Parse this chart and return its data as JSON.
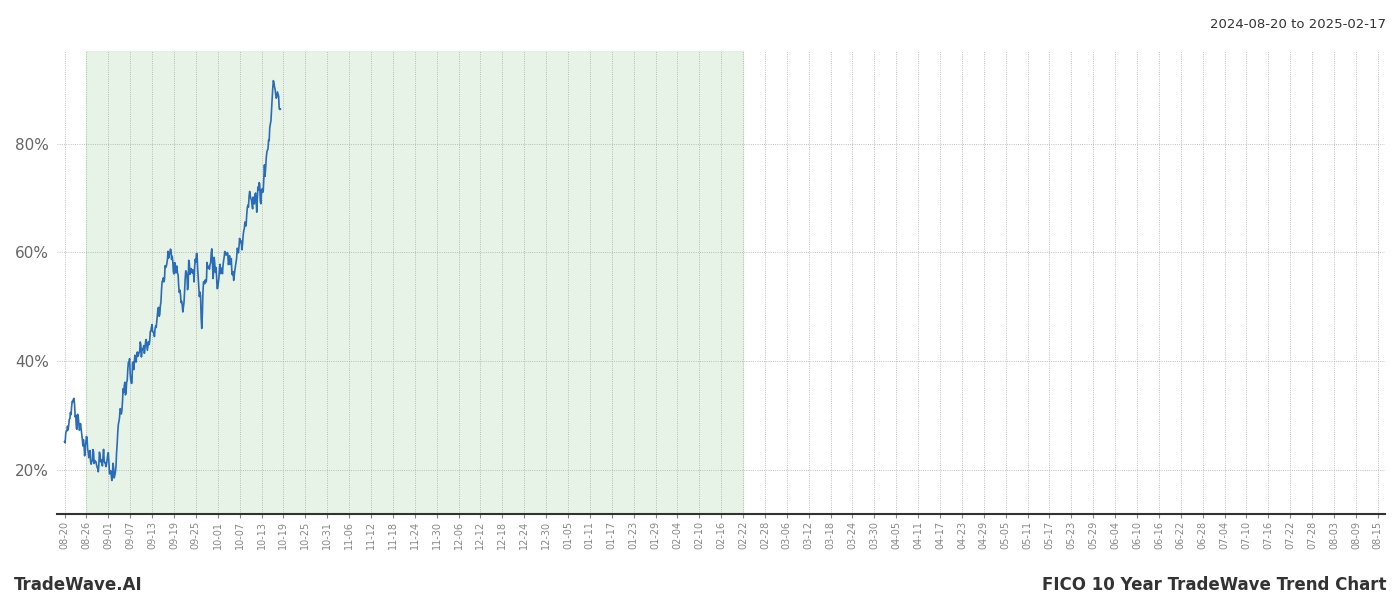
{
  "title_date_range": "2024-08-20 to 2025-02-17",
  "footer_left": "TradeWave.AI",
  "footer_right": "FICO 10 Year TradeWave Trend Chart",
  "line_color": "#2b6cb8",
  "line_width": 1.2,
  "shaded_color": "#daeeda",
  "shaded_alpha": 0.65,
  "grid_color": "#aaaaaa",
  "grid_linestyle": ":",
  "background_color": "#ffffff",
  "ylim": [
    12,
    97
  ],
  "yticks": [
    20,
    40,
    60,
    80
  ],
  "shade_start_label": "08-26",
  "shade_end_label": "02-22",
  "xtick_labels": [
    "08-20",
    "08-26",
    "09-01",
    "09-07",
    "09-13",
    "09-19",
    "09-25",
    "10-01",
    "10-07",
    "10-13",
    "10-19",
    "10-25",
    "10-31",
    "11-06",
    "11-12",
    "11-18",
    "11-24",
    "11-30",
    "12-06",
    "12-12",
    "12-18",
    "12-24",
    "12-30",
    "01-05",
    "01-11",
    "01-17",
    "01-23",
    "01-29",
    "02-04",
    "02-10",
    "02-16",
    "02-22",
    "02-28",
    "03-06",
    "03-12",
    "03-18",
    "03-24",
    "03-30",
    "04-05",
    "04-11",
    "04-17",
    "04-23",
    "04-29",
    "05-05",
    "05-11",
    "05-17",
    "05-23",
    "05-29",
    "06-04",
    "06-10",
    "06-16",
    "06-22",
    "06-28",
    "07-04",
    "07-10",
    "07-16",
    "07-22",
    "07-28",
    "08-03",
    "08-09",
    "08-15"
  ]
}
